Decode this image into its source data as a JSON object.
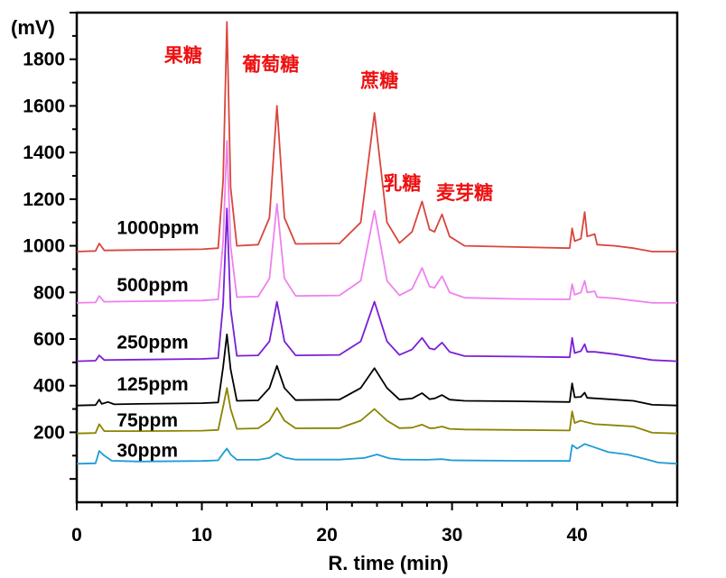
{
  "chart_data": {
    "type": "line",
    "title": "",
    "xlabel": "R. time (min)",
    "ylabel": "(mV)",
    "xlim": [
      0,
      48
    ],
    "ylim": [
      -100,
      2000
    ],
    "x_ticks": [
      0,
      10,
      20,
      30,
      40
    ],
    "y_ticks": [
      200,
      400,
      600,
      800,
      1000,
      1200,
      1400,
      1600,
      1800
    ],
    "grid": false,
    "peak_labels": [
      {
        "text": "果糖",
        "x": 8.5,
        "y": 1790,
        "color": "#ee1111"
      },
      {
        "text": "葡萄糖",
        "x": 15.5,
        "y": 1750,
        "color": "#ee1111"
      },
      {
        "text": "蔗糖",
        "x": 24.2,
        "y": 1680,
        "color": "#ee1111"
      },
      {
        "text": "乳糖",
        "x": 26.0,
        "y": 1240,
        "color": "#ee1111"
      },
      {
        "text": "麦芽糖",
        "x": 31.0,
        "y": 1200,
        "color": "#ee1111"
      }
    ],
    "peak_times_min": [
      1.8,
      12.0,
      16.0,
      23.8,
      27.6,
      29.2,
      39.6,
      40.6
    ],
    "series": [
      {
        "name": "1000ppm",
        "color": "#d9463d",
        "label_x": 3.2,
        "label_y": 1050,
        "points": [
          [
            0,
            975
          ],
          [
            1.5,
            978
          ],
          [
            1.8,
            1010
          ],
          [
            2.2,
            980
          ],
          [
            5,
            982
          ],
          [
            10,
            985
          ],
          [
            11.3,
            990
          ],
          [
            11.7,
            1280
          ],
          [
            12.0,
            1960
          ],
          [
            12.3,
            1250
          ],
          [
            12.8,
            1000
          ],
          [
            14.5,
            1005
          ],
          [
            15.4,
            1120
          ],
          [
            16.0,
            1600
          ],
          [
            16.6,
            1120
          ],
          [
            17.5,
            1008
          ],
          [
            21,
            1010
          ],
          [
            22.7,
            1100
          ],
          [
            23.8,
            1570
          ],
          [
            24.8,
            1100
          ],
          [
            25.8,
            1012
          ],
          [
            26.8,
            1060
          ],
          [
            27.6,
            1190
          ],
          [
            28.2,
            1070
          ],
          [
            28.6,
            1060
          ],
          [
            29.2,
            1135
          ],
          [
            29.8,
            1040
          ],
          [
            31,
            1000
          ],
          [
            35,
            995
          ],
          [
            39.4,
            990
          ],
          [
            39.6,
            1075
          ],
          [
            39.8,
            1020
          ],
          [
            40.3,
            1030
          ],
          [
            40.6,
            1145
          ],
          [
            40.8,
            1040
          ],
          [
            41.4,
            1050
          ],
          [
            41.6,
            1005
          ],
          [
            43,
            1000
          ],
          [
            44.5,
            990
          ],
          [
            46,
            975
          ],
          [
            48,
            975
          ]
        ]
      },
      {
        "name": "500ppm",
        "color": "#ee82ee",
        "label_x": 3.2,
        "label_y": 805,
        "points": [
          [
            0,
            755
          ],
          [
            1.5,
            757
          ],
          [
            1.8,
            785
          ],
          [
            2.2,
            760
          ],
          [
            5,
            762
          ],
          [
            10,
            765
          ],
          [
            11.3,
            770
          ],
          [
            11.7,
            1020
          ],
          [
            12.0,
            1450
          ],
          [
            12.3,
            1000
          ],
          [
            12.8,
            780
          ],
          [
            14.5,
            782
          ],
          [
            15.4,
            860
          ],
          [
            16.0,
            1180
          ],
          [
            16.6,
            860
          ],
          [
            17.5,
            785
          ],
          [
            21,
            787
          ],
          [
            22.7,
            850
          ],
          [
            23.8,
            1150
          ],
          [
            24.8,
            850
          ],
          [
            25.8,
            787
          ],
          [
            26.8,
            815
          ],
          [
            27.6,
            905
          ],
          [
            28.2,
            825
          ],
          [
            28.6,
            820
          ],
          [
            29.2,
            870
          ],
          [
            29.8,
            800
          ],
          [
            31,
            777
          ],
          [
            35,
            772
          ],
          [
            39.4,
            770
          ],
          [
            39.6,
            835
          ],
          [
            39.8,
            790
          ],
          [
            40.3,
            800
          ],
          [
            40.6,
            850
          ],
          [
            40.8,
            800
          ],
          [
            41.4,
            805
          ],
          [
            41.6,
            780
          ],
          [
            43,
            775
          ],
          [
            46,
            755
          ],
          [
            48,
            755
          ]
        ]
      },
      {
        "name": "250ppm",
        "color": "#7a1fd6",
        "label_x": 3.2,
        "label_y": 560,
        "points": [
          [
            0,
            505
          ],
          [
            1.5,
            507
          ],
          [
            1.8,
            530
          ],
          [
            2.2,
            510
          ],
          [
            5,
            512
          ],
          [
            10,
            515
          ],
          [
            11.3,
            518
          ],
          [
            11.7,
            750
          ],
          [
            12.0,
            1160
          ],
          [
            12.3,
            730
          ],
          [
            12.8,
            528
          ],
          [
            14.5,
            530
          ],
          [
            15.4,
            590
          ],
          [
            16.0,
            760
          ],
          [
            16.6,
            590
          ],
          [
            17.5,
            530
          ],
          [
            21,
            532
          ],
          [
            22.7,
            590
          ],
          [
            23.8,
            760
          ],
          [
            24.8,
            590
          ],
          [
            25.8,
            532
          ],
          [
            26.8,
            555
          ],
          [
            27.6,
            605
          ],
          [
            28.2,
            560
          ],
          [
            28.6,
            555
          ],
          [
            29.2,
            585
          ],
          [
            29.8,
            545
          ],
          [
            31,
            527
          ],
          [
            35,
            525
          ],
          [
            39.4,
            522
          ],
          [
            39.6,
            605
          ],
          [
            39.8,
            540
          ],
          [
            40.3,
            548
          ],
          [
            40.6,
            578
          ],
          [
            40.8,
            545
          ],
          [
            41.4,
            545
          ],
          [
            43,
            535
          ],
          [
            46,
            510
          ],
          [
            48,
            505
          ]
        ]
      },
      {
        "name": "125ppm",
        "color": "#000000",
        "label_x": 3.2,
        "label_y": 380,
        "points": [
          [
            0,
            315
          ],
          [
            1.5,
            317
          ],
          [
            1.8,
            340
          ],
          [
            2.0,
            322
          ],
          [
            2.5,
            330
          ],
          [
            3.0,
            320
          ],
          [
            5,
            322
          ],
          [
            10,
            325
          ],
          [
            11.3,
            328
          ],
          [
            11.7,
            480
          ],
          [
            12.0,
            620
          ],
          [
            12.3,
            470
          ],
          [
            12.8,
            335
          ],
          [
            14.5,
            337
          ],
          [
            15.4,
            390
          ],
          [
            16.0,
            485
          ],
          [
            16.6,
            390
          ],
          [
            17.5,
            338
          ],
          [
            21,
            340
          ],
          [
            22.7,
            390
          ],
          [
            23.8,
            475
          ],
          [
            24.8,
            390
          ],
          [
            25.8,
            340
          ],
          [
            26.8,
            345
          ],
          [
            27.6,
            368
          ],
          [
            28.2,
            342
          ],
          [
            28.6,
            345
          ],
          [
            29.2,
            360
          ],
          [
            29.8,
            340
          ],
          [
            31,
            335
          ],
          [
            35,
            333
          ],
          [
            39.4,
            330
          ],
          [
            39.6,
            410
          ],
          [
            39.8,
            350
          ],
          [
            40.3,
            352
          ],
          [
            40.6,
            370
          ],
          [
            40.8,
            348
          ],
          [
            43,
            340
          ],
          [
            44.5,
            335
          ],
          [
            46,
            318
          ],
          [
            48,
            315
          ]
        ]
      },
      {
        "name": "75ppm",
        "color": "#8a8400",
        "label_x": 3.2,
        "label_y": 225,
        "points": [
          [
            0,
            195
          ],
          [
            1.5,
            197
          ],
          [
            1.8,
            235
          ],
          [
            2.2,
            205
          ],
          [
            5,
            205
          ],
          [
            10,
            207
          ],
          [
            11.3,
            210
          ],
          [
            11.7,
            310
          ],
          [
            12.0,
            390
          ],
          [
            12.3,
            300
          ],
          [
            12.8,
            215
          ],
          [
            14.5,
            217
          ],
          [
            15.4,
            250
          ],
          [
            16.0,
            305
          ],
          [
            16.6,
            250
          ],
          [
            17.5,
            217
          ],
          [
            21,
            218
          ],
          [
            22.7,
            250
          ],
          [
            23.8,
            300
          ],
          [
            24.8,
            250
          ],
          [
            25.8,
            218
          ],
          [
            26.8,
            220
          ],
          [
            27.6,
            233
          ],
          [
            28.2,
            218
          ],
          [
            28.6,
            218
          ],
          [
            29.2,
            225
          ],
          [
            29.8,
            215
          ],
          [
            31,
            212
          ],
          [
            35,
            210
          ],
          [
            39.4,
            208
          ],
          [
            39.6,
            290
          ],
          [
            39.8,
            240
          ],
          [
            40.3,
            250
          ],
          [
            40.6,
            245
          ],
          [
            41.4,
            235
          ],
          [
            43,
            230
          ],
          [
            44.5,
            225
          ],
          [
            46,
            198
          ],
          [
            48,
            195
          ]
        ]
      },
      {
        "name": "30ppm",
        "color": "#1e9bd7",
        "label_x": 3.2,
        "label_y": 95,
        "points": [
          [
            0,
            65
          ],
          [
            1.5,
            67
          ],
          [
            1.8,
            120
          ],
          [
            2.2,
            100
          ],
          [
            2.8,
            78
          ],
          [
            5,
            75
          ],
          [
            10,
            77
          ],
          [
            11.3,
            80
          ],
          [
            11.7,
            110
          ],
          [
            12.0,
            130
          ],
          [
            12.3,
            105
          ],
          [
            12.8,
            82
          ],
          [
            14.5,
            82
          ],
          [
            15.4,
            90
          ],
          [
            16.0,
            110
          ],
          [
            16.6,
            92
          ],
          [
            17.5,
            83
          ],
          [
            21,
            83
          ],
          [
            23.0,
            90
          ],
          [
            24.0,
            105
          ],
          [
            25.0,
            88
          ],
          [
            26,
            83
          ],
          [
            28,
            82
          ],
          [
            29.2,
            85
          ],
          [
            30,
            80
          ],
          [
            35,
            78
          ],
          [
            39.4,
            77
          ],
          [
            39.6,
            145
          ],
          [
            40.0,
            130
          ],
          [
            40.6,
            150
          ],
          [
            41.4,
            135
          ],
          [
            42.5,
            115
          ],
          [
            44,
            105
          ],
          [
            45.5,
            85
          ],
          [
            46.5,
            70
          ],
          [
            48,
            65
          ]
        ]
      }
    ]
  }
}
